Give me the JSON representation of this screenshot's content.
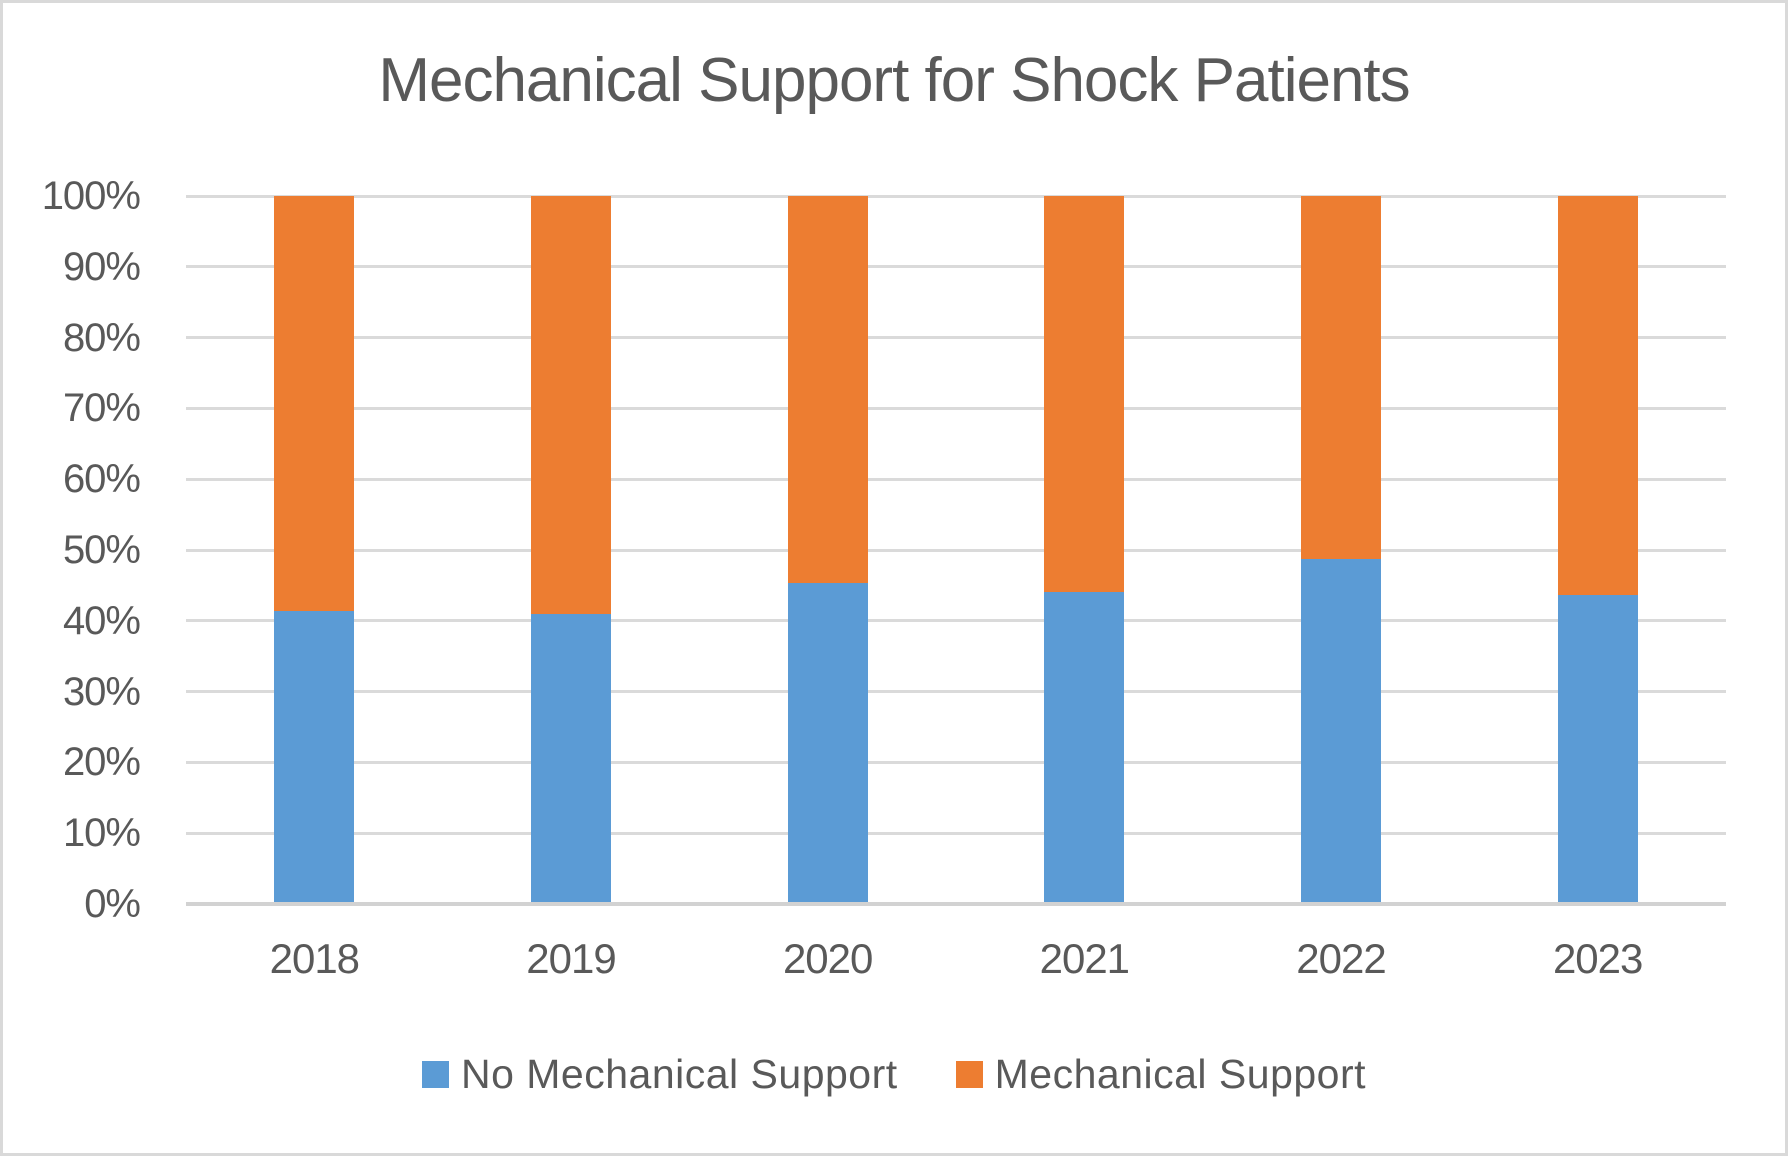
{
  "chart": {
    "title": "Mechanical Support for Shock Patients"
  },
  "chart_data": {
    "type": "bar",
    "stacked": true,
    "percent_stacked": true,
    "title": "Mechanical Support for Shock Patients",
    "categories": [
      "2018",
      "2019",
      "2020",
      "2021",
      "2022",
      "2023"
    ],
    "series": [
      {
        "name": "No Mechanical Support",
        "color": "#5B9BD5",
        "values": [
          41.4,
          40.9,
          45.4,
          44.1,
          48.8,
          43.6
        ]
      },
      {
        "name": "Mechanical Support",
        "color": "#ED7D31",
        "values": [
          58.6,
          59.1,
          54.6,
          55.9,
          51.2,
          56.4
        ]
      }
    ],
    "xlabel": "",
    "ylabel": "",
    "ylim": [
      0,
      100
    ],
    "y_tick_step": 10,
    "y_tick_labels": [
      "0%",
      "10%",
      "20%",
      "30%",
      "40%",
      "50%",
      "60%",
      "70%",
      "80%",
      "90%",
      "100%"
    ],
    "grid": true,
    "legend_position": "bottom"
  },
  "legend": {
    "items": [
      {
        "label": "No Mechanical Support",
        "color": "#5B9BD5"
      },
      {
        "label": "Mechanical Support",
        "color": "#ED7D31"
      }
    ]
  },
  "colors": {
    "series_blue": "#5B9BD5",
    "series_orange": "#ED7D31",
    "gridline": "#DADADA",
    "axis_line": "#D2D2D2",
    "text": "#595959",
    "frame_border": "#D9D9D9",
    "background": "#FFFFFF"
  }
}
